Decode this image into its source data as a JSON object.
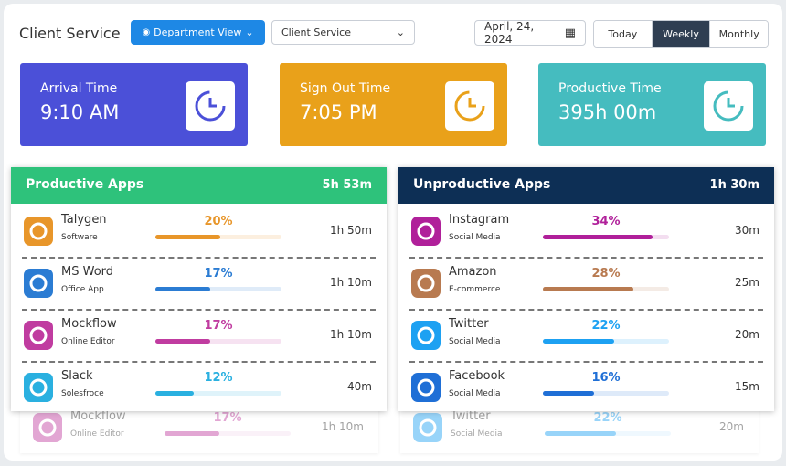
{
  "header": {
    "title": "Client Service",
    "department_button": "Department View",
    "client_select": "Client Service",
    "date": "April, 24, 2024",
    "tabs": [
      "Today",
      "Weekly",
      "Monthly"
    ],
    "active_tab": 1
  },
  "stats": [
    {
      "label": "Arrival Time",
      "value": "9:10 AM",
      "color": "#4b50d8"
    },
    {
      "label": "Sign Out  Time",
      "value": "7:05 PM",
      "color": "#e9a11a"
    },
    {
      "label": "Productive Time",
      "value": "395h 00m",
      "color": "#45bcbf"
    }
  ],
  "panels": [
    {
      "title": "Productive Apps",
      "total": "5h 53m",
      "color": "#2ec27b",
      "apps": [
        {
          "name": "Talygen",
          "category": "Software",
          "percent": {
            "value": 20,
            "label": "20%"
          },
          "duration": "1h 50m",
          "color": "#e8962a"
        },
        {
          "name": "MS Word",
          "category": "Office App",
          "percent": {
            "value": 17,
            "label": "17%"
          },
          "duration": "1h 10m",
          "color": "#2b7cd3"
        },
        {
          "name": "Mockflow",
          "category": "Online Editor",
          "percent": {
            "value": 17,
            "label": "17%"
          },
          "duration": "1h 10m",
          "color": "#c03ca0"
        },
        {
          "name": "Slack",
          "category": "Solesfroce",
          "percent": {
            "value": 12,
            "label": "12%"
          },
          "duration": "40m",
          "color": "#2ab0e0"
        }
      ]
    },
    {
      "title": "Unproductive Apps",
      "total": "1h 30m",
      "color": "#0d2f55",
      "apps": [
        {
          "name": "Instagram",
          "category": "Social Media",
          "percent": {
            "value": 34,
            "label": "34%"
          },
          "duration": "30m",
          "color": "#b0209a"
        },
        {
          "name": "Amazon",
          "category": "E-commerce",
          "percent": {
            "value": 28,
            "label": "28%"
          },
          "duration": "25m",
          "color": "#b87a50"
        },
        {
          "name": "Twitter",
          "category": "Social Media",
          "percent": {
            "value": 22,
            "label": "22%"
          },
          "duration": "20m",
          "color": "#1da1f2"
        },
        {
          "name": "Facebook",
          "category": "Social Media",
          "percent": {
            "value": 16,
            "label": "16%"
          },
          "duration": "15m",
          "color": "#1f6fd6"
        }
      ]
    }
  ],
  "ghost_rows": [
    {
      "name": "Mockflow",
      "category": "Online Editor",
      "percent": {
        "value": 17,
        "label": "17%"
      },
      "duration": "1h 10m",
      "color": "#c03ca0"
    },
    {
      "name": "Twitter",
      "category": "Social Media",
      "percent": {
        "value": 22,
        "label": "22%"
      },
      "duration": "20m",
      "color": "#1da1f2"
    }
  ]
}
